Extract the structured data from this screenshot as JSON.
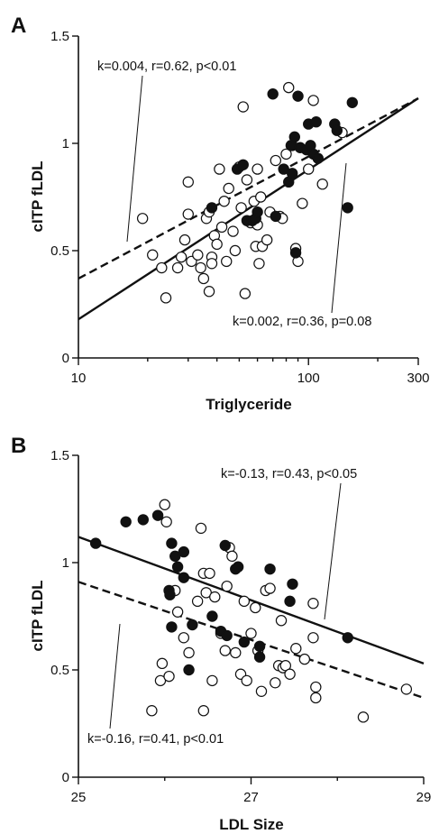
{
  "chart_data": [
    {
      "panel": "A",
      "type": "scatter",
      "xlabel": "Triglyceride",
      "ylabel": "cITP fLDL",
      "xscale": "log",
      "xlim": [
        10,
        300
      ],
      "ylim": [
        0,
        1.5
      ],
      "xticks": [
        10,
        100,
        300
      ],
      "xtick_labels": [
        "10",
        "100",
        "300"
      ],
      "yticks": [
        0,
        0.5,
        1,
        1.5
      ],
      "ytick_labels": [
        "0",
        "0.5",
        "1",
        "1.5"
      ],
      "series": [
        {
          "marker": "open",
          "points": [
            [
              19,
              0.65
            ],
            [
              21,
              0.48
            ],
            [
              23,
              0.42
            ],
            [
              24,
              0.28
            ],
            [
              27,
              0.42
            ],
            [
              28,
              0.47
            ],
            [
              29,
              0.55
            ],
            [
              30,
              0.82
            ],
            [
              30,
              0.67
            ],
            [
              31,
              0.45
            ],
            [
              33,
              0.48
            ],
            [
              34,
              0.42
            ],
            [
              35,
              0.37
            ],
            [
              36,
              0.65
            ],
            [
              37,
              0.31
            ],
            [
              37,
              0.68
            ],
            [
              38,
              0.47
            ],
            [
              38,
              0.44
            ],
            [
              39,
              0.57
            ],
            [
              40,
              0.53
            ],
            [
              41,
              0.88
            ],
            [
              42,
              0.61
            ],
            [
              43,
              0.73
            ],
            [
              44,
              0.45
            ],
            [
              45,
              0.79
            ],
            [
              47,
              0.59
            ],
            [
              48,
              0.5
            ],
            [
              50,
              0.89
            ],
            [
              51,
              0.7
            ],
            [
              52,
              1.17
            ],
            [
              53,
              0.3
            ],
            [
              54,
              0.83
            ],
            [
              56,
              0.63
            ],
            [
              58,
              0.73
            ],
            [
              59,
              0.52
            ],
            [
              60,
              0.62
            ],
            [
              60,
              0.88
            ],
            [
              61,
              0.44
            ],
            [
              62,
              0.75
            ],
            [
              63,
              0.52
            ],
            [
              66,
              0.55
            ],
            [
              68,
              0.68
            ],
            [
              72,
              0.92
            ],
            [
              75,
              0.66
            ],
            [
              77,
              0.65
            ],
            [
              80,
              0.95
            ],
            [
              82,
              1.26
            ],
            [
              85,
              0.99
            ],
            [
              88,
              0.51
            ],
            [
              90,
              0.45
            ],
            [
              94,
              0.72
            ],
            [
              100,
              0.88
            ],
            [
              105,
              1.2
            ],
            [
              115,
              0.81
            ],
            [
              140,
              1.05
            ]
          ]
        },
        {
          "marker": "filled",
          "points": [
            [
              38,
              0.7
            ],
            [
              49,
              0.88
            ],
            [
              52,
              0.9
            ],
            [
              54,
              0.64
            ],
            [
              57,
              0.64
            ],
            [
              59,
              0.65
            ],
            [
              60,
              0.68
            ],
            [
              70,
              1.23
            ],
            [
              72,
              0.66
            ],
            [
              78,
              0.88
            ],
            [
              82,
              0.82
            ],
            [
              84,
              0.99
            ],
            [
              85,
              0.86
            ],
            [
              87,
              1.03
            ],
            [
              88,
              0.49
            ],
            [
              90,
              1.22
            ],
            [
              92,
              0.98
            ],
            [
              98,
              0.97
            ],
            [
              100,
              1.09
            ],
            [
              102,
              0.99
            ],
            [
              105,
              0.95
            ],
            [
              108,
              1.1
            ],
            [
              110,
              0.93
            ],
            [
              130,
              1.09
            ],
            [
              133,
              1.06
            ],
            [
              148,
              0.7
            ],
            [
              155,
              1.19
            ]
          ]
        }
      ],
      "fits": [
        {
          "style": "dashed",
          "x": [
            10,
            300
          ],
          "y": [
            0.37,
            1.21
          ],
          "label": "k=0.004, r=0.62, p<0.01"
        },
        {
          "style": "solid",
          "x": [
            10,
            300
          ],
          "y": [
            0.18,
            1.21
          ],
          "label": "k=0.002, r=0.36, p=0.08"
        }
      ]
    },
    {
      "panel": "B",
      "type": "scatter",
      "xlabel": "LDL Size",
      "ylabel": "cITP fLDL",
      "xlim": [
        25,
        29
      ],
      "ylim": [
        0,
        1.5
      ],
      "xticks": [
        25,
        27,
        29
      ],
      "xtick_labels": [
        "25",
        "27",
        "29"
      ],
      "yticks": [
        0,
        0.5,
        1,
        1.5
      ],
      "ytick_labels": [
        "0",
        "0.5",
        "1",
        "1.5"
      ],
      "series": [
        {
          "marker": "open",
          "points": [
            [
              25.85,
              0.31
            ],
            [
              25.95,
              0.45
            ],
            [
              25.97,
              0.53
            ],
            [
              26.05,
              0.47
            ],
            [
              26.0,
              1.27
            ],
            [
              26.02,
              1.19
            ],
            [
              26.12,
              0.87
            ],
            [
              26.15,
              0.77
            ],
            [
              26.22,
              0.65
            ],
            [
              26.28,
              0.58
            ],
            [
              26.38,
              0.82
            ],
            [
              26.42,
              1.16
            ],
            [
              26.45,
              0.31
            ],
            [
              26.45,
              0.95
            ],
            [
              26.48,
              0.86
            ],
            [
              26.52,
              0.95
            ],
            [
              26.55,
              0.45
            ],
            [
              26.58,
              0.84
            ],
            [
              26.65,
              0.67
            ],
            [
              26.7,
              0.59
            ],
            [
              26.72,
              0.89
            ],
            [
              26.75,
              1.07
            ],
            [
              26.78,
              1.03
            ],
            [
              26.82,
              0.58
            ],
            [
              26.88,
              0.48
            ],
            [
              26.92,
              0.82
            ],
            [
              26.95,
              0.45
            ],
            [
              27.0,
              0.67
            ],
            [
              27.05,
              0.79
            ],
            [
              27.08,
              0.59
            ],
            [
              27.12,
              0.4
            ],
            [
              27.17,
              0.87
            ],
            [
              27.22,
              0.88
            ],
            [
              27.28,
              0.44
            ],
            [
              27.32,
              0.52
            ],
            [
              27.35,
              0.73
            ],
            [
              27.37,
              0.51
            ],
            [
              27.4,
              0.52
            ],
            [
              27.45,
              0.48
            ],
            [
              27.52,
              0.6
            ],
            [
              27.62,
              0.55
            ],
            [
              27.72,
              0.81
            ],
            [
              27.72,
              0.65
            ],
            [
              27.75,
              0.42
            ],
            [
              27.75,
              0.37
            ],
            [
              28.3,
              0.28
            ],
            [
              28.8,
              0.41
            ]
          ]
        },
        {
          "marker": "filled",
          "points": [
            [
              25.2,
              1.09
            ],
            [
              25.55,
              1.19
            ],
            [
              25.75,
              1.2
            ],
            [
              25.92,
              1.22
            ],
            [
              26.05,
              0.87
            ],
            [
              26.06,
              0.85
            ],
            [
              26.08,
              0.7
            ],
            [
              26.08,
              1.09
            ],
            [
              26.12,
              1.03
            ],
            [
              26.15,
              0.98
            ],
            [
              26.22,
              1.05
            ],
            [
              26.22,
              0.93
            ],
            [
              26.28,
              0.5
            ],
            [
              26.32,
              0.71
            ],
            [
              26.55,
              0.75
            ],
            [
              26.65,
              0.68
            ],
            [
              26.7,
              1.08
            ],
            [
              26.72,
              0.66
            ],
            [
              26.82,
              0.97
            ],
            [
              26.85,
              0.98
            ],
            [
              26.92,
              0.63
            ],
            [
              27.1,
              0.56
            ],
            [
              27.1,
              0.61
            ],
            [
              27.22,
              0.97
            ],
            [
              27.45,
              0.82
            ],
            [
              27.48,
              0.9
            ],
            [
              28.12,
              0.65
            ]
          ]
        }
      ],
      "fits": [
        {
          "style": "solid",
          "x": [
            25,
            29
          ],
          "y": [
            1.12,
            0.53
          ],
          "label": "k=-0.13, r=0.43, p<0.05"
        },
        {
          "style": "dashed",
          "x": [
            25,
            29
          ],
          "y": [
            0.91,
            0.37
          ],
          "label": "k=-0.16, r=0.41, p<0.01"
        }
      ]
    }
  ]
}
